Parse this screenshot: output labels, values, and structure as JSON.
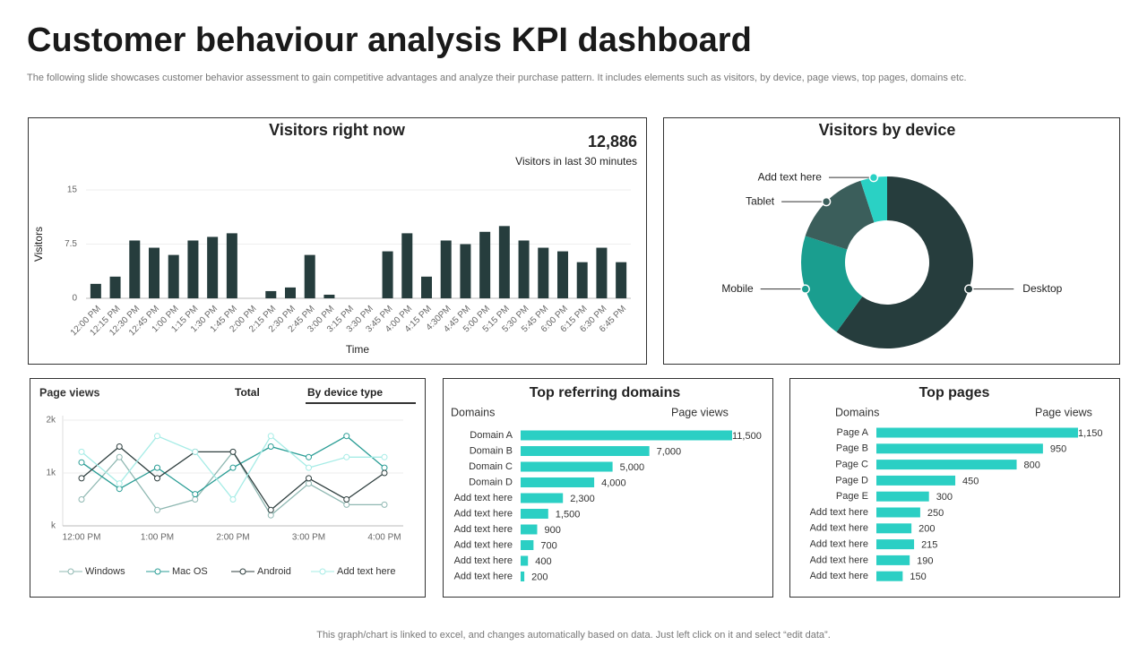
{
  "header": {
    "title": "Customer behaviour analysis KPI dashboard",
    "subtitle": "The following slide showcases customer behavior assessment to gain competitive advantages and analyze their purchase pattern. It includes elements such as visitors, by device, page views, top pages, domains etc."
  },
  "footer": "This graph/chart is linked to excel,  and changes automatically based on data. Just left click on it and select “edit data”.",
  "chart_data": [
    {
      "type": "bar",
      "title": "Visitors right now",
      "kpi_value": "12,886",
      "kpi_label": "Visitors in last 30 minutes",
      "y_label": "Visitors",
      "x_label": "Time",
      "color": "#263d3d",
      "grid": true,
      "ylim": [
        0,
        15
      ],
      "yticks": [
        0,
        7.5,
        15
      ],
      "categories": [
        "12:00 PM",
        "12:15 PM",
        "12:30 PM",
        "12:45 PM",
        "1:00 PM",
        "1:15 PM",
        "1:30 PM",
        "1:45 PM",
        "2:00 PM",
        "2:15 PM",
        "2:30 PM",
        "2:45 PM",
        "3:00 PM",
        "3:15 PM",
        "3:30 PM",
        "3:45 PM",
        "4:00 PM",
        "4:15 PM",
        "4:30PM",
        "4:45 PM",
        "5:00 PM",
        "5:15 PM",
        "5:30 PM",
        "5:45 PM",
        "6:00 PM",
        "6:15 PM",
        "6:30 PM",
        "6:45 PM"
      ],
      "values": [
        2,
        3,
        8,
        7,
        6,
        8,
        8.5,
        9,
        0,
        1,
        1.5,
        6,
        0.5,
        0,
        0,
        6.5,
        9,
        3,
        8,
        7.5,
        9.2,
        10,
        8,
        7,
        6.5,
        5,
        7,
        5
      ]
    },
    {
      "type": "donut",
      "title": "Visitors by device",
      "categories": [
        "Desktop",
        "Mobile",
        "Tablet",
        "Add text here"
      ],
      "values": [
        60,
        20,
        15,
        5
      ],
      "colors": [
        "#263d3d",
        "#1a9e8f",
        "#3b5e5b",
        "#2ad1c4"
      ]
    },
    {
      "type": "line",
      "title": "Page views",
      "tabs": [
        "Total",
        "By device type"
      ],
      "grid": true,
      "ylim": [
        0,
        2000
      ],
      "yticks": [
        {
          "value": 0,
          "label": "k"
        },
        {
          "value": 1000,
          "label": "1k"
        },
        {
          "value": 2000,
          "label": "2k"
        }
      ],
      "categories": [
        "12:00 PM",
        null,
        "1:00 PM",
        null,
        "2:00 PM",
        null,
        "3:00 PM",
        null,
        "4:00 PM"
      ],
      "series": [
        {
          "name": "Windows",
          "color": "#8fb8b2",
          "values": [
            500,
            1300,
            300,
            500,
            1400,
            200,
            800,
            400,
            400
          ]
        },
        {
          "name": "Mac OS",
          "color": "#2a9d95",
          "values": [
            1200,
            700,
            1100,
            600,
            1100,
            1500,
            1300,
            1700,
            1100
          ]
        },
        {
          "name": "Android",
          "color": "#2f3f3f",
          "values": [
            900,
            1500,
            900,
            1400,
            1400,
            300,
            900,
            500,
            1000
          ]
        },
        {
          "name": "Add text here",
          "color": "#a6ece6",
          "values": [
            1400,
            800,
            1700,
            1400,
            500,
            1700,
            1100,
            1300,
            1300
          ]
        }
      ]
    },
    {
      "type": "barh",
      "title": "Top referring domains",
      "column_headers": [
        "Domains",
        "Page views"
      ],
      "color": "#2bcfc4",
      "categories": [
        "Domain A",
        "Domain B",
        "Domain C",
        "Domain D",
        "Add text here",
        "Add text here",
        "Add text here",
        "Add text here",
        "Add text here",
        "Add text here"
      ],
      "values": [
        11500,
        7000,
        5000,
        4000,
        2300,
        1500,
        900,
        700,
        400,
        200
      ],
      "value_labels": [
        "11,500",
        "7,000",
        "5,000",
        "4,000",
        "2,300",
        "1,500",
        "900",
        "700",
        "400",
        "200"
      ]
    },
    {
      "type": "barh",
      "title": "Top pages",
      "column_headers": [
        "Domains",
        "Page views"
      ],
      "color": "#2bcfc4",
      "categories": [
        "Page A",
        "Page B",
        "Page C",
        "Page D",
        "Page E",
        "Add text here",
        "Add text here",
        "Add text here",
        "Add text here",
        "Add text here"
      ],
      "values": [
        1150,
        950,
        800,
        450,
        300,
        250,
        200,
        215,
        190,
        150
      ],
      "value_labels": [
        "1,150",
        "950",
        "800",
        "450",
        "300",
        "250",
        "200",
        "215",
        "190",
        "150"
      ]
    }
  ]
}
